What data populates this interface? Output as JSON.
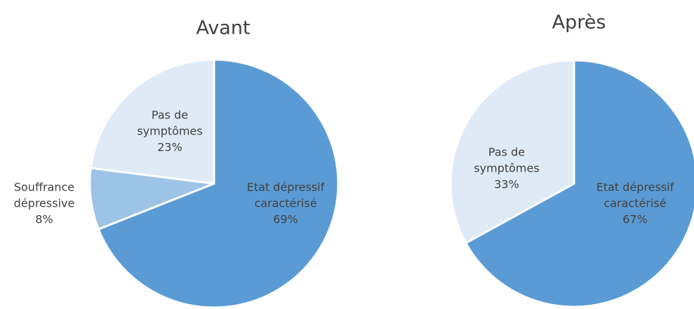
{
  "chart_data": [
    {
      "type": "pie",
      "title": "Avant",
      "categories": [
        "Etat dépressif caractérisé",
        "Souffrance dépressive",
        "Pas de symptômes"
      ],
      "values": [
        69,
        8,
        23
      ],
      "value_labels": [
        "69%",
        "8%",
        "23%"
      ],
      "colors": [
        "#5b9bd5",
        "#9dc3e6",
        "#deebf7"
      ]
    },
    {
      "type": "pie",
      "title": "Après",
      "categories": [
        "Etat dépressif caractérisé",
        "Pas de symptômes"
      ],
      "values": [
        67,
        33
      ],
      "value_labels": [
        "67%",
        "33%"
      ],
      "colors": [
        "#5b9bd5",
        "#deebf7"
      ]
    }
  ]
}
